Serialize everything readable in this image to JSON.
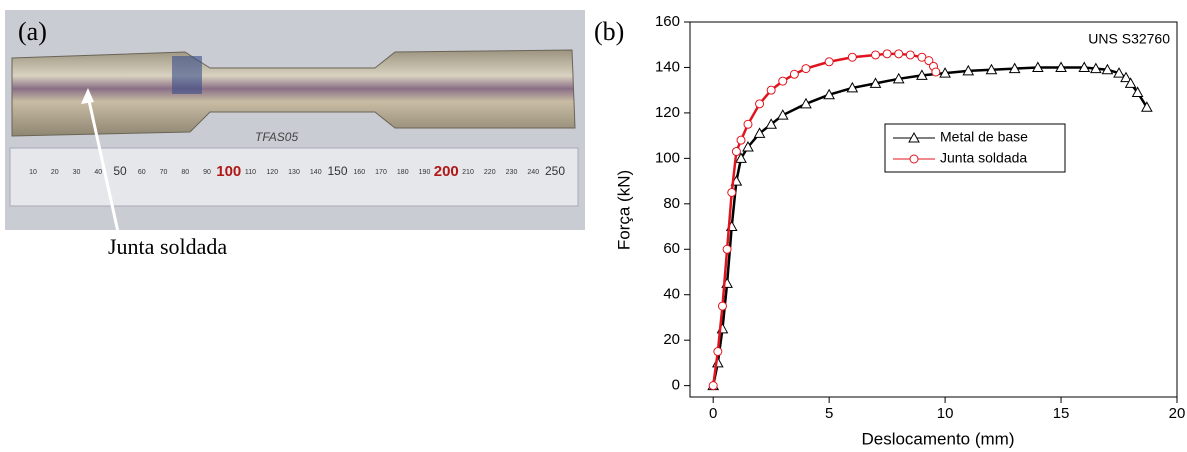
{
  "panel_a": {
    "label": "(a)",
    "annotation": "Junta soldada",
    "specimen_marking": "TFAS05",
    "ruler_labels": [
      10,
      20,
      30,
      40,
      50,
      60,
      70,
      80,
      90,
      100,
      110,
      120,
      130,
      140,
      150,
      160,
      170,
      180,
      190,
      200,
      210,
      220,
      230,
      240,
      250
    ]
  },
  "chart_data": {
    "type": "line",
    "panel_label": "(b)",
    "annotation": "UNS S32760",
    "x_label": "Deslocamento (mm)",
    "y_label": "Força (kN)",
    "xlim": [
      -1,
      20
    ],
    "ylim": [
      -5,
      160
    ],
    "xticks": [
      0,
      5,
      10,
      15,
      20
    ],
    "yticks": [
      0,
      20,
      40,
      60,
      80,
      100,
      120,
      140,
      160
    ],
    "series": [
      {
        "name": "Metal de base",
        "color": "#000000",
        "marker": "triangle",
        "x": [
          0,
          0.2,
          0.4,
          0.6,
          0.8,
          1.0,
          1.2,
          1.5,
          2,
          2.5,
          3,
          4,
          5,
          6,
          7,
          8,
          9,
          10,
          11,
          12,
          13,
          14,
          15,
          16,
          16.5,
          17,
          17.5,
          17.8,
          18,
          18.3,
          18.7
        ],
        "values": [
          0,
          10,
          25,
          45,
          70,
          90,
          100,
          105,
          111,
          115,
          119,
          124,
          128,
          131,
          133,
          135,
          136.5,
          137.5,
          138.5,
          139,
          139.5,
          140,
          140,
          140,
          139.5,
          139,
          137.5,
          135.5,
          133,
          129,
          122.5
        ]
      },
      {
        "name": "Junta soldada",
        "color": "#e0141e",
        "marker": "circle",
        "x": [
          0,
          0.2,
          0.4,
          0.6,
          0.8,
          1.0,
          1.2,
          1.5,
          2,
          2.5,
          3,
          3.5,
          4,
          5,
          6,
          7,
          7.5,
          8,
          8.5,
          9,
          9.3,
          9.5,
          9.6
        ],
        "values": [
          0,
          15,
          35,
          60,
          85,
          103,
          108,
          115,
          124,
          130,
          134,
          137,
          139.5,
          142.5,
          144.5,
          145.5,
          146,
          146,
          145.5,
          144.5,
          143,
          140.5,
          138
        ]
      }
    ]
  }
}
